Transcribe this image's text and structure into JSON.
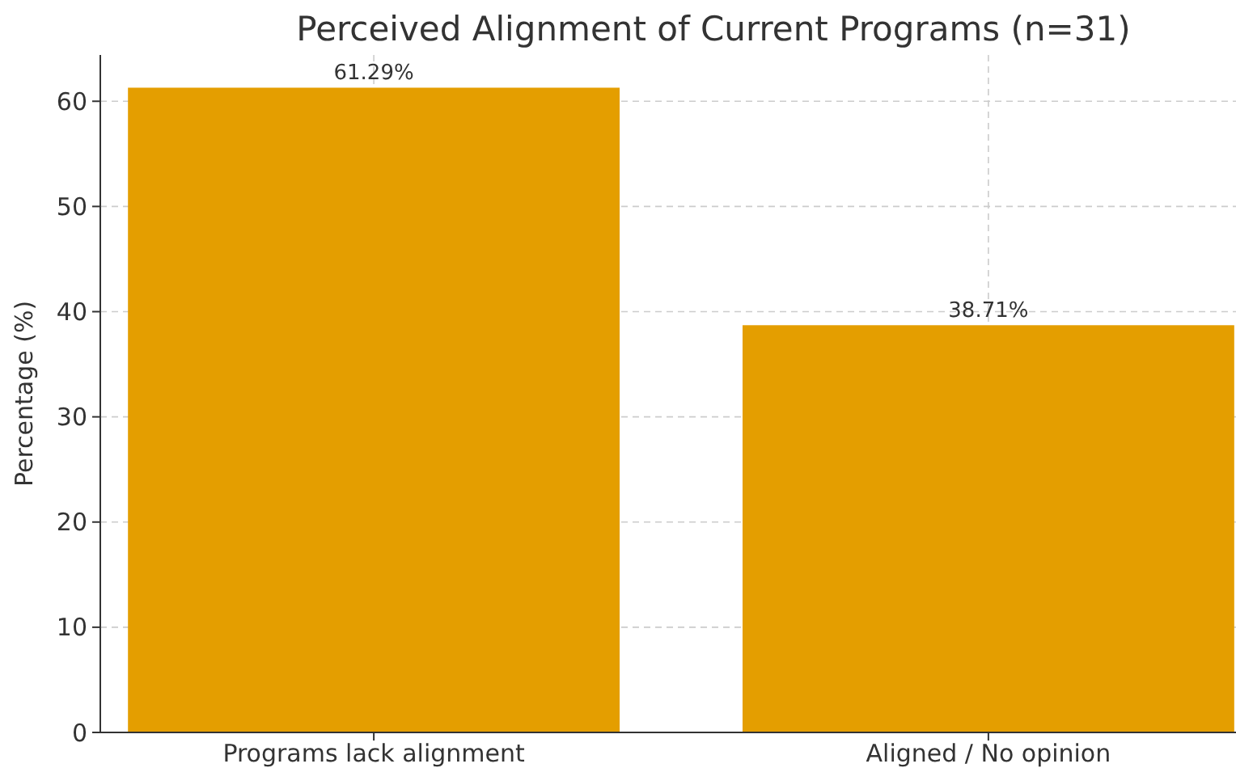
{
  "chart_data": {
    "type": "bar",
    "title": "Perceived Alignment of Current Programs (n=31)",
    "ylabel": "Percentage (%)",
    "categories": [
      "Programs lack alignment",
      "Aligned / No opinion"
    ],
    "values": [
      61.29,
      38.71
    ],
    "value_labels": [
      "61.29%",
      "38.71%"
    ],
    "color": "#e49e00",
    "ylim": [
      0,
      64.4
    ],
    "yticks": [
      0,
      10,
      20,
      30,
      40,
      50,
      60
    ],
    "grid": true
  }
}
